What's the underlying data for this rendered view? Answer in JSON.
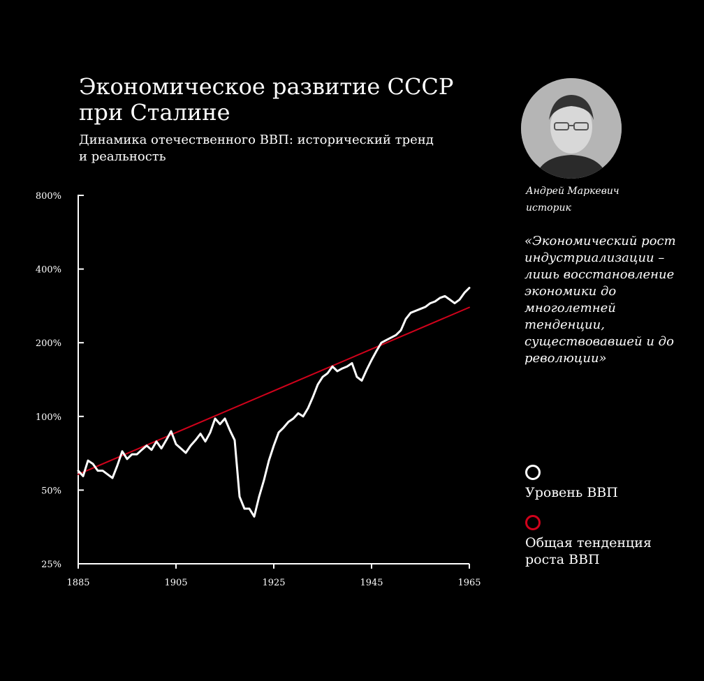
{
  "title": "Экономическое развитие СССР при Сталине",
  "subtitle": "Динамика отечественного ВВП: исторический тренд и реальность",
  "author": {
    "name": "Андрей Маркевич",
    "role": "историк"
  },
  "quote": "«Экономический рост индустриализации – лишь восстановление экономики до многолетней тенденции, существовавшей и до революции»",
  "colors": {
    "background": "#000000",
    "gdp_line": "#ffffff",
    "trend_line": "#d0021b"
  },
  "legend": [
    {
      "label": "Уровень ВВП",
      "color": "#ffffff"
    },
    {
      "label": "Общая тенденция роста ВВП",
      "color": "#d0021b"
    }
  ],
  "chart_data": {
    "type": "line",
    "title": "Динамика отечественного ВВП: исторический тренд и реальность",
    "xlabel": "",
    "ylabel": "",
    "y_scale": "log",
    "ylim": [
      25,
      800
    ],
    "xlim": [
      1885,
      1965
    ],
    "x_ticks": [
      1885,
      1905,
      1925,
      1945,
      1965
    ],
    "x_tick_labels": [
      "1885",
      "1905",
      "1925",
      "1945",
      "1965"
    ],
    "y_ticks": [
      25,
      50,
      100,
      200,
      400,
      800
    ],
    "y_tick_labels": [
      "25%",
      "50%",
      "100%",
      "200%",
      "400%",
      "800%"
    ],
    "series": [
      {
        "name": "Уровень ВВП",
        "color": "#ffffff",
        "x": [
          1885,
          1886,
          1887,
          1888,
          1889,
          1890,
          1891,
          1892,
          1893,
          1894,
          1895,
          1896,
          1897,
          1898,
          1899,
          1900,
          1901,
          1902,
          1903,
          1904,
          1905,
          1906,
          1907,
          1908,
          1909,
          1910,
          1911,
          1912,
          1913,
          1914,
          1915,
          1916,
          1917,
          1918,
          1919,
          1920,
          1921,
          1922,
          1923,
          1924,
          1925,
          1926,
          1927,
          1928,
          1929,
          1930,
          1931,
          1932,
          1933,
          1934,
          1935,
          1936,
          1937,
          1938,
          1939,
          1940,
          1941,
          1942,
          1943,
          1944,
          1945,
          1946,
          1947,
          1948,
          1949,
          1950,
          1951,
          1952,
          1953,
          1954,
          1955,
          1956,
          1957,
          1958,
          1959,
          1960,
          1961,
          1962,
          1963,
          1964,
          1965
        ],
        "values": [
          60,
          57,
          66,
          64,
          60,
          60,
          58,
          56,
          63,
          72,
          67,
          70,
          70,
          73,
          76,
          73,
          79,
          74,
          80,
          87,
          77,
          74,
          71,
          76,
          80,
          85,
          79,
          86,
          98,
          93,
          98,
          88,
          80,
          47,
          42,
          42,
          39,
          47,
          55,
          66,
          76,
          86,
          90,
          95,
          98,
          103,
          100,
          108,
          120,
          135,
          145,
          150,
          160,
          153,
          157,
          160,
          165,
          145,
          140,
          155,
          170,
          185,
          200,
          205,
          210,
          215,
          225,
          250,
          265,
          270,
          275,
          280,
          290,
          295,
          305,
          310,
          300,
          290,
          300,
          320,
          335
        ]
      },
      {
        "name": "Общая тенденция роста ВВП",
        "color": "#d0021b",
        "x": [
          1885,
          1965
        ],
        "values": [
          58,
          279
        ]
      }
    ]
  }
}
